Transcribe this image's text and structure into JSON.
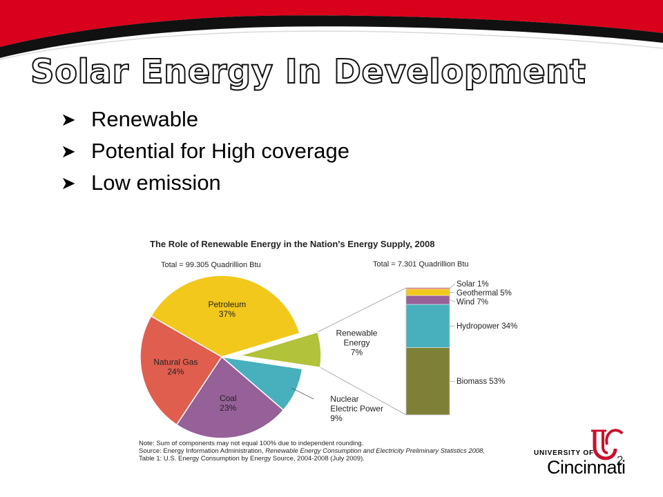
{
  "slide": {
    "title": "Solar Energy In Development",
    "bullets": [
      "Renewable",
      "Potential for High coverage",
      "Low emission"
    ],
    "page_number": "2",
    "colors": {
      "banner_red": "#d9001b",
      "banner_black": "#111111"
    }
  },
  "logo": {
    "university_of": "UNIVERSITY OF",
    "name": "Cincinnati"
  },
  "chart_data": {
    "type": "pie",
    "title": "The Role of Renewable Energy in the Nation's Energy Supply, 2008",
    "pie_total": "Total = 99.305 Quadrillion Btu",
    "bar_total": "Total = 7.301 Quadrillion Btu",
    "slices": [
      {
        "name": "Petroleum",
        "label": "Petroleum",
        "pct_label": "37%",
        "value": 37,
        "color": "#f2c81d"
      },
      {
        "name": "Renewable Energy",
        "label": "Renewable\nEnergy",
        "pct_label": "7%",
        "value": 7,
        "color": "#b2c23a",
        "exploded": true
      },
      {
        "name": "Nuclear Electric Power",
        "label": "Nuclear\nElectric Power",
        "pct_label": "9%",
        "value": 9,
        "color": "#48b0bd"
      },
      {
        "name": "Coal",
        "label": "Coal",
        "pct_label": "23%",
        "value": 23,
        "color": "#966098"
      },
      {
        "name": "Natural Gas",
        "label": "Natural Gas",
        "pct_label": "24%",
        "value": 24,
        "color": "#e05e4e"
      }
    ],
    "breakdown": [
      {
        "name": "Biomass",
        "label": "Biomass 53%",
        "value": 53,
        "color": "#7f8038"
      },
      {
        "name": "Hydropower",
        "label": "Hydropower 34%",
        "value": 34,
        "color": "#48b0bd"
      },
      {
        "name": "Wind",
        "label": "Wind 7%",
        "value": 7,
        "color": "#966098"
      },
      {
        "name": "Geothermal",
        "label": "Geothermal 5%",
        "value": 5,
        "color": "#f2c81d"
      },
      {
        "name": "Solar",
        "label": "Solar 1%",
        "value": 1,
        "color": "#e05e4e"
      }
    ],
    "notes": {
      "line1": "Note: Sum of components may not equal 100% due to independent rounding.",
      "line2_prefix": "Source: Energy Information Administration, ",
      "line2_italic": "Renewable Energy Consumption and Electricity Preliminary Statistics 2008,",
      "line3": "Table 1: U.S. Energy Consumption by Energy Source, 2004-2008 (July 2009)."
    }
  }
}
